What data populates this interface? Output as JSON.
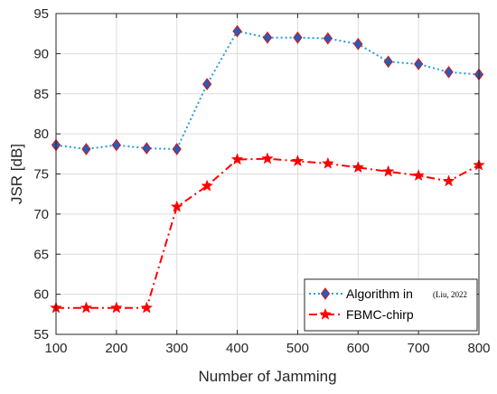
{
  "chart_data": {
    "type": "line",
    "title": "",
    "xlabel": "Number of Jamming",
    "ylabel": "JSR [dB]",
    "xlim": [
      100,
      800
    ],
    "ylim": [
      55,
      95
    ],
    "xticks": [
      100,
      200,
      300,
      400,
      500,
      600,
      700,
      800
    ],
    "yticks": [
      55,
      60,
      65,
      70,
      75,
      80,
      85,
      90,
      95
    ],
    "grid": true,
    "legend_position": "bottom-right",
    "x": [
      100,
      150,
      200,
      250,
      300,
      350,
      400,
      450,
      500,
      550,
      600,
      650,
      700,
      750,
      800
    ],
    "series": [
      {
        "name": "Algorithm in",
        "name_citation": "(Liu, 2022",
        "color": "#1f9fde",
        "marker_color": "#1f5fbf",
        "marker_edge": "#e01010",
        "marker": "diamond",
        "linestyle": "dotted",
        "values": [
          78.6,
          78.1,
          78.6,
          78.2,
          78.1,
          86.2,
          92.8,
          92.0,
          92.0,
          91.9,
          91.2,
          89.0,
          88.7,
          87.7,
          87.4
        ]
      },
      {
        "name": "FBMC-chirp",
        "color": "#ff0000",
        "marker_color": "#ff0000",
        "marker": "star",
        "linestyle": "dashdot",
        "values": [
          58.3,
          58.3,
          58.3,
          58.3,
          70.9,
          73.5,
          76.8,
          76.9,
          76.6,
          76.3,
          75.8,
          75.3,
          74.8,
          74.1,
          76.1
        ]
      }
    ]
  }
}
